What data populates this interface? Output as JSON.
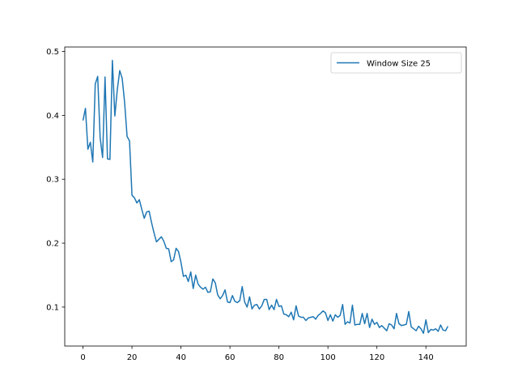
{
  "chart_data": {
    "type": "line",
    "title": "",
    "xlabel": "",
    "ylabel": "",
    "xlim": [
      -7.45,
      156.45
    ],
    "ylim": [
      0.039,
      0.507
    ],
    "xticks": [
      0,
      20,
      40,
      60,
      80,
      100,
      120,
      140
    ],
    "yticks": [
      0.1,
      0.2,
      0.3,
      0.4,
      0.5
    ],
    "xtick_labels": [
      "0",
      "20",
      "40",
      "60",
      "80",
      "100",
      "120",
      "140"
    ],
    "ytick_labels": [
      "0.1",
      "0.2",
      "0.3",
      "0.4",
      "0.5"
    ],
    "grid": false,
    "legend": {
      "position": "upper right",
      "entries": [
        "Window Size 25"
      ]
    },
    "series": [
      {
        "name": "Window Size 25",
        "color": "#1f77b4",
        "x": [
          0,
          1,
          2,
          3,
          4,
          5,
          6,
          7,
          8,
          9,
          10,
          11,
          12,
          13,
          14,
          15,
          16,
          17,
          18,
          19,
          20,
          21,
          22,
          23,
          24,
          25,
          26,
          27,
          28,
          29,
          30,
          31,
          32,
          33,
          34,
          35,
          36,
          37,
          38,
          39,
          40,
          41,
          42,
          43,
          44,
          45,
          46,
          47,
          48,
          49,
          50,
          51,
          52,
          53,
          54,
          55,
          56,
          57,
          58,
          59,
          60,
          61,
          62,
          63,
          64,
          65,
          66,
          67,
          68,
          69,
          70,
          71,
          72,
          73,
          74,
          75,
          76,
          77,
          78,
          79,
          80,
          81,
          82,
          83,
          84,
          85,
          86,
          87,
          88,
          89,
          90,
          91,
          92,
          93,
          94,
          95,
          96,
          97,
          98,
          99,
          100,
          101,
          102,
          103,
          104,
          105,
          106,
          107,
          108,
          109,
          110,
          111,
          112,
          113,
          114,
          115,
          116,
          117,
          118,
          119,
          120,
          121,
          122,
          123,
          124,
          125,
          126,
          127,
          128,
          129,
          130,
          131,
          132,
          133,
          134,
          135,
          136,
          137,
          138,
          139,
          140,
          141,
          142,
          143,
          144,
          145,
          146,
          147,
          148,
          149
        ],
        "y": [
          0.392,
          0.411,
          0.347,
          0.358,
          0.327,
          0.449,
          0.461,
          0.365,
          0.334,
          0.46,
          0.332,
          0.331,
          0.486,
          0.399,
          0.44,
          0.47,
          0.458,
          0.42,
          0.367,
          0.36,
          0.275,
          0.271,
          0.263,
          0.268,
          0.253,
          0.239,
          0.249,
          0.25,
          0.232,
          0.216,
          0.202,
          0.206,
          0.21,
          0.203,
          0.192,
          0.191,
          0.171,
          0.174,
          0.192,
          0.187,
          0.17,
          0.148,
          0.15,
          0.14,
          0.155,
          0.129,
          0.15,
          0.136,
          0.131,
          0.128,
          0.131,
          0.123,
          0.124,
          0.144,
          0.138,
          0.119,
          0.113,
          0.118,
          0.127,
          0.108,
          0.107,
          0.118,
          0.109,
          0.107,
          0.11,
          0.132,
          0.108,
          0.1,
          0.116,
          0.097,
          0.103,
          0.104,
          0.097,
          0.102,
          0.112,
          0.112,
          0.096,
          0.103,
          0.096,
          0.112,
          0.101,
          0.102,
          0.089,
          0.088,
          0.085,
          0.092,
          0.08,
          0.102,
          0.086,
          0.084,
          0.084,
          0.079,
          0.083,
          0.084,
          0.085,
          0.081,
          0.087,
          0.09,
          0.094,
          0.091,
          0.079,
          0.088,
          0.078,
          0.088,
          0.084,
          0.087,
          0.104,
          0.073,
          0.077,
          0.075,
          0.103,
          0.072,
          0.073,
          0.073,
          0.09,
          0.074,
          0.09,
          0.068,
          0.081,
          0.073,
          0.076,
          0.068,
          0.071,
          0.067,
          0.063,
          0.074,
          0.072,
          0.066,
          0.09,
          0.074,
          0.071,
          0.072,
          0.073,
          0.093,
          0.069,
          0.066,
          0.063,
          0.07,
          0.066,
          0.059,
          0.08,
          0.06,
          0.065,
          0.064,
          0.066,
          0.062,
          0.072,
          0.064,
          0.063,
          0.07
        ]
      }
    ]
  }
}
